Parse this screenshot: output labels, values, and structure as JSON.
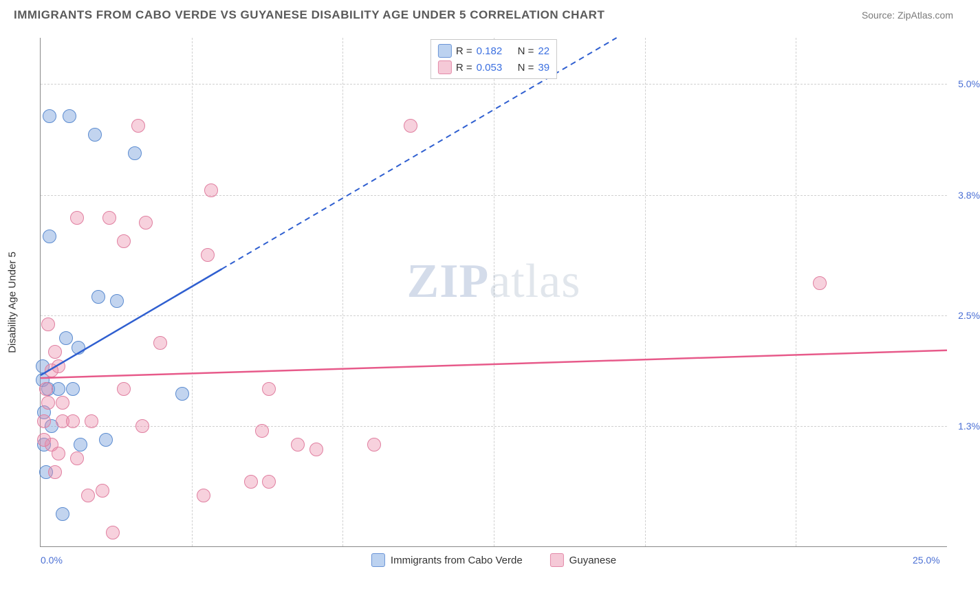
{
  "header": {
    "title": "IMMIGRANTS FROM CABO VERDE VS GUYANESE DISABILITY AGE UNDER 5 CORRELATION CHART",
    "source": "Source: ZipAtlas.com"
  },
  "chart": {
    "type": "scatter",
    "ylabel": "Disability Age Under 5",
    "watermark_a": "ZIP",
    "watermark_b": "atlas",
    "xlim": [
      0.0,
      25.0
    ],
    "ylim": [
      0.0,
      5.5
    ],
    "x_ticks": [
      0.0,
      25.0
    ],
    "x_tick_labels": [
      "0.0%",
      "25.0%"
    ],
    "x_minor_ticks": [
      4.17,
      8.33,
      12.5,
      16.67,
      20.83
    ],
    "y_ticks": [
      1.3,
      2.5,
      3.8,
      5.0
    ],
    "y_tick_labels": [
      "1.3%",
      "2.5%",
      "3.8%",
      "5.0%"
    ],
    "background_color": "#ffffff",
    "grid_color": "#d0d0d0",
    "axis_color": "#888888",
    "marker_radius": 10,
    "marker_opacity": 0.55,
    "series": [
      {
        "key": "cabo_verde",
        "label": "Immigrants from Cabo Verde",
        "color_fill": "rgba(120,160,220,0.45)",
        "color_stroke": "#5b8bd0",
        "swatch_fill": "#bcd2f0",
        "swatch_stroke": "#6a94d6",
        "R": "0.182",
        "N": "22",
        "trend": {
          "x1": 0.0,
          "y1": 1.85,
          "x2": 5.0,
          "y2": 3.0,
          "x2_ext": 18.5,
          "y2_ext": 6.1,
          "color": "#2f5fd0",
          "width": 2.5
        },
        "points": [
          {
            "x": 0.25,
            "y": 4.65
          },
          {
            "x": 0.8,
            "y": 4.65
          },
          {
            "x": 1.5,
            "y": 4.45
          },
          {
            "x": 2.6,
            "y": 4.25
          },
          {
            "x": 0.25,
            "y": 3.35
          },
          {
            "x": 1.6,
            "y": 2.7
          },
          {
            "x": 2.1,
            "y": 2.65
          },
          {
            "x": 0.7,
            "y": 2.25
          },
          {
            "x": 1.05,
            "y": 2.15
          },
          {
            "x": 0.05,
            "y": 1.8
          },
          {
            "x": 0.2,
            "y": 1.7
          },
          {
            "x": 0.9,
            "y": 1.7
          },
          {
            "x": 0.5,
            "y": 1.7
          },
          {
            "x": 0.1,
            "y": 1.45
          },
          {
            "x": 0.3,
            "y": 1.3
          },
          {
            "x": 0.1,
            "y": 1.1
          },
          {
            "x": 1.1,
            "y": 1.1
          },
          {
            "x": 1.8,
            "y": 1.15
          },
          {
            "x": 3.9,
            "y": 1.65
          },
          {
            "x": 0.15,
            "y": 0.8
          },
          {
            "x": 0.05,
            "y": 1.95
          },
          {
            "x": 0.6,
            "y": 0.35
          }
        ]
      },
      {
        "key": "guyanese",
        "label": "Guyanese",
        "color_fill": "rgba(235,140,170,0.40)",
        "color_stroke": "#e07fa0",
        "swatch_fill": "#f5c9d7",
        "swatch_stroke": "#e389a8",
        "R": "0.053",
        "N": "39",
        "trend": {
          "x1": 0.0,
          "y1": 1.82,
          "x2": 25.0,
          "y2": 2.12,
          "color": "#e75a8a",
          "width": 2.5
        },
        "points": [
          {
            "x": 2.7,
            "y": 4.55
          },
          {
            "x": 10.2,
            "y": 4.55
          },
          {
            "x": 4.7,
            "y": 3.85
          },
          {
            "x": 1.0,
            "y": 3.55
          },
          {
            "x": 1.9,
            "y": 3.55
          },
          {
            "x": 2.9,
            "y": 3.5
          },
          {
            "x": 2.3,
            "y": 3.3
          },
          {
            "x": 4.6,
            "y": 3.15
          },
          {
            "x": 0.2,
            "y": 2.4
          },
          {
            "x": 21.5,
            "y": 2.85
          },
          {
            "x": 0.4,
            "y": 2.1
          },
          {
            "x": 0.5,
            "y": 1.95
          },
          {
            "x": 3.3,
            "y": 2.2
          },
          {
            "x": 2.3,
            "y": 1.7
          },
          {
            "x": 0.2,
            "y": 1.55
          },
          {
            "x": 0.6,
            "y": 1.55
          },
          {
            "x": 6.3,
            "y": 1.7
          },
          {
            "x": 0.1,
            "y": 1.35
          },
          {
            "x": 0.6,
            "y": 1.35
          },
          {
            "x": 1.4,
            "y": 1.35
          },
          {
            "x": 2.8,
            "y": 1.3
          },
          {
            "x": 6.1,
            "y": 1.25
          },
          {
            "x": 0.3,
            "y": 1.1
          },
          {
            "x": 0.9,
            "y": 1.35
          },
          {
            "x": 7.1,
            "y": 1.1
          },
          {
            "x": 7.6,
            "y": 1.05
          },
          {
            "x": 9.2,
            "y": 1.1
          },
          {
            "x": 0.4,
            "y": 0.8
          },
          {
            "x": 1.3,
            "y": 0.55
          },
          {
            "x": 1.7,
            "y": 0.6
          },
          {
            "x": 4.5,
            "y": 0.55
          },
          {
            "x": 5.8,
            "y": 0.7
          },
          {
            "x": 6.3,
            "y": 0.7
          },
          {
            "x": 0.5,
            "y": 1.0
          },
          {
            "x": 0.15,
            "y": 1.7
          },
          {
            "x": 0.3,
            "y": 1.9
          },
          {
            "x": 0.1,
            "y": 1.15
          },
          {
            "x": 2.0,
            "y": 0.15
          },
          {
            "x": 1.0,
            "y": 0.95
          }
        ]
      }
    ],
    "legend_top_labels": {
      "R": "R  =",
      "N": "N  ="
    }
  }
}
